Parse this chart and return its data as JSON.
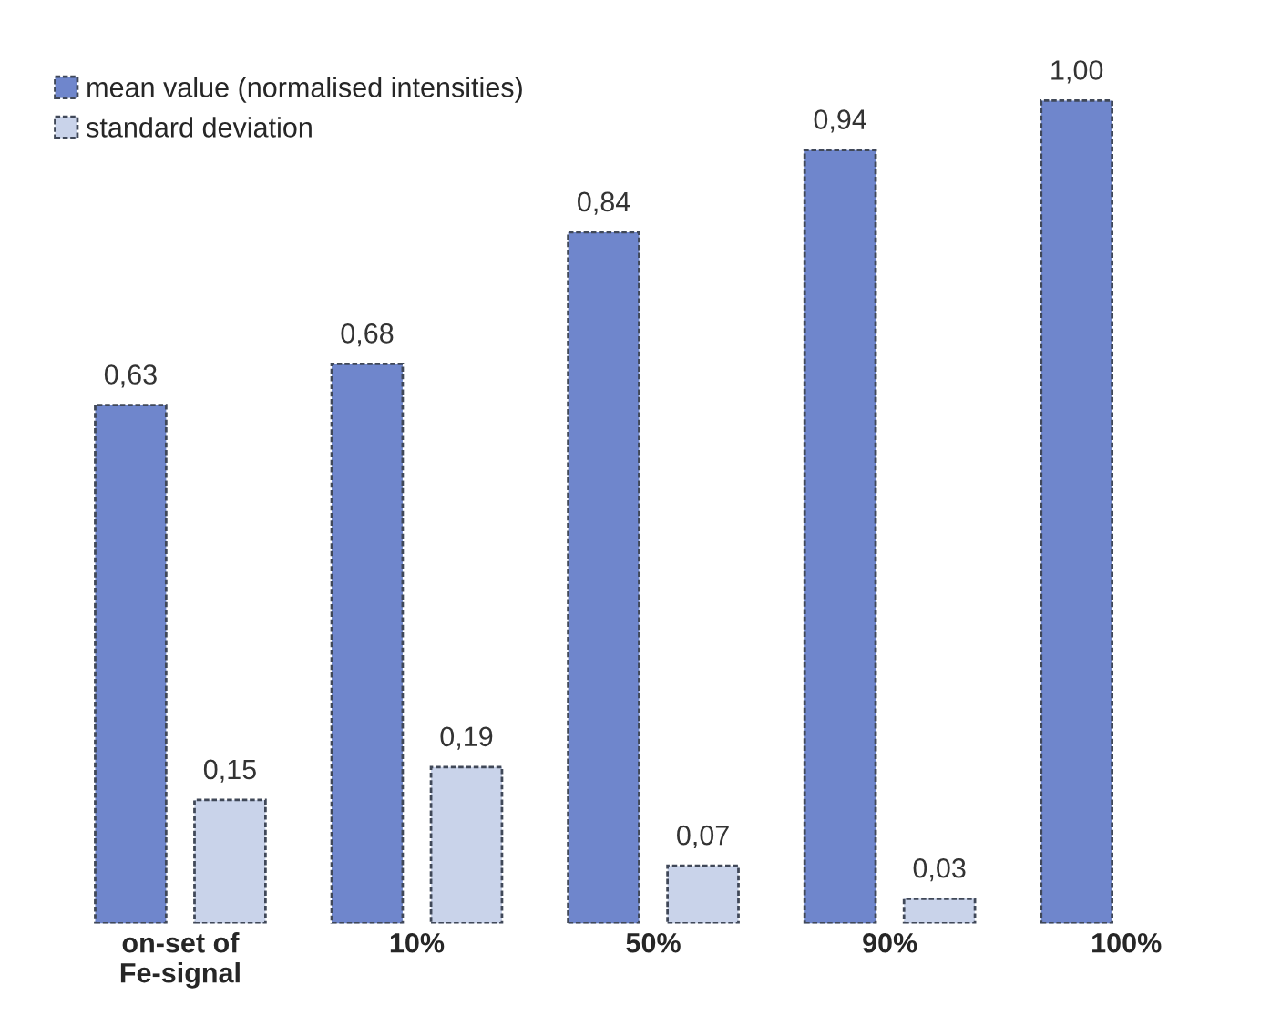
{
  "chart_data": {
    "type": "bar",
    "categories": [
      "on-set of\nFe-signal",
      "10%",
      "50%",
      "90%",
      "100%"
    ],
    "series": [
      {
        "name": "mean value (normalised intensities)",
        "color": "#6f86cc",
        "values": [
          0.63,
          0.68,
          0.84,
          0.94,
          1.0
        ],
        "value_labels": [
          "0,63",
          "0,68",
          "0,84",
          "0,94",
          "1,00"
        ]
      },
      {
        "name": "standard deviation",
        "color": "#c9d3ea",
        "values": [
          0.15,
          0.19,
          0.07,
          0.03,
          null
        ],
        "value_labels": [
          "0,15",
          "0,19",
          "0,07",
          "0,03",
          null
        ]
      }
    ],
    "tick_labels": "x",
    "grid": false,
    "legend": "top left"
  }
}
